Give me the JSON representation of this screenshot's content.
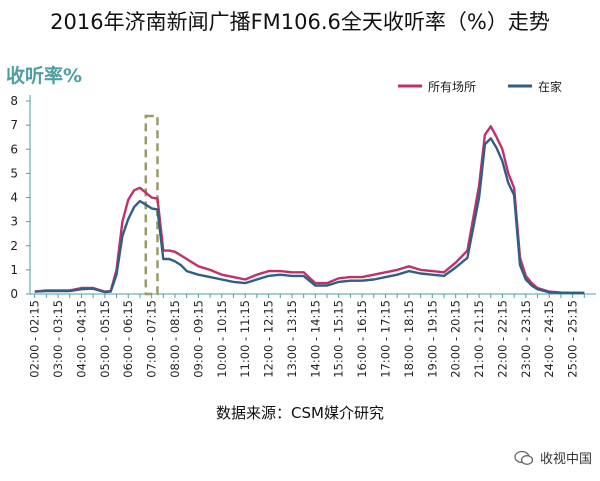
{
  "title": "2016年济南新闻广播FM106.6全天收听率（%）走势",
  "source": "数据来源：CSM媒介研究",
  "brand": "收视中国",
  "chart_data": {
    "type": "line",
    "ylabel": "收听率%",
    "ylim": [
      0,
      8
    ],
    "yticks": [
      0,
      1,
      2,
      3,
      4,
      5,
      6,
      7,
      8
    ],
    "xlabels": [
      "02:00 - 02:15",
      "03:00 - 03:15",
      "04:00 - 04:15",
      "05:00 - 05:15",
      "06:00 - 06:15",
      "07:00 - 07:15",
      "08:00 - 08:15",
      "09:00 - 09:15",
      "10:00 - 10:15",
      "11:00 - 11:15",
      "12:00 - 12:15",
      "13:00 - 13:15",
      "14:00 - 14:15",
      "15:00 - 15:15",
      "16:00 - 16:15",
      "17:00 - 17:15",
      "18:00 - 18:15",
      "19:00 - 19:15",
      "20:00 - 20:15",
      "21:00 - 21:15",
      "22:00 - 22:15",
      "23:00 - 23:15",
      "24:00 - 24:15",
      "25:00 - 25:15"
    ],
    "legend_position": "top-right",
    "highlight": {
      "x_start": 6.75,
      "x_end": 7.25,
      "style": "dashed-box"
    },
    "colors": {
      "all": "#c0306a",
      "home": "#2f5f86",
      "axis": "#4f9ea3",
      "highlight": "#9a9a6a"
    },
    "series": [
      {
        "name": "所有场所",
        "x": [
          2,
          2.5,
          3,
          3.5,
          4,
          4.5,
          5,
          5.25,
          5.5,
          5.75,
          6,
          6.25,
          6.5,
          6.75,
          7,
          7.25,
          7.5,
          7.75,
          8,
          8.25,
          8.5,
          9,
          9.5,
          10,
          10.5,
          11,
          11.5,
          12,
          12.5,
          13,
          13.5,
          14,
          14.5,
          15,
          15.5,
          16,
          16.5,
          17,
          17.5,
          18,
          18.5,
          19,
          19.5,
          20,
          20.5,
          21,
          21.25,
          21.5,
          21.75,
          22,
          22.25,
          22.5,
          22.75,
          23,
          23.25,
          23.5,
          24,
          24.5,
          25,
          25.5
        ],
        "values": [
          0.1,
          0.15,
          0.15,
          0.15,
          0.25,
          0.25,
          0.1,
          0.12,
          1.0,
          3.0,
          3.9,
          4.3,
          4.4,
          4.2,
          4.0,
          3.95,
          1.8,
          1.8,
          1.75,
          1.6,
          1.45,
          1.15,
          1.0,
          0.8,
          0.7,
          0.6,
          0.8,
          0.95,
          0.95,
          0.9,
          0.9,
          0.45,
          0.45,
          0.65,
          0.7,
          0.7,
          0.8,
          0.9,
          1.0,
          1.15,
          1.0,
          0.95,
          0.9,
          1.3,
          1.8,
          4.5,
          6.6,
          6.95,
          6.5,
          6.0,
          5.0,
          4.4,
          1.5,
          0.75,
          0.45,
          0.25,
          0.1,
          0.06,
          0.05,
          0.05
        ]
      },
      {
        "name": "在家",
        "x": [
          2,
          2.5,
          3,
          3.5,
          4,
          4.5,
          5,
          5.25,
          5.5,
          5.75,
          6,
          6.25,
          6.5,
          6.75,
          7,
          7.25,
          7.5,
          7.75,
          8,
          8.25,
          8.5,
          9,
          9.5,
          10,
          10.5,
          11,
          11.5,
          12,
          12.5,
          13,
          13.5,
          14,
          14.5,
          15,
          15.5,
          16,
          16.5,
          17,
          17.5,
          18,
          18.5,
          19,
          19.5,
          20,
          20.5,
          21,
          21.25,
          21.5,
          21.75,
          22,
          22.25,
          22.5,
          22.75,
          23,
          23.25,
          23.5,
          24,
          24.5,
          25,
          25.5
        ],
        "values": [
          0.1,
          0.12,
          0.12,
          0.12,
          0.2,
          0.22,
          0.08,
          0.1,
          0.8,
          2.4,
          3.1,
          3.6,
          3.85,
          3.7,
          3.55,
          3.5,
          1.45,
          1.45,
          1.35,
          1.2,
          0.95,
          0.8,
          0.7,
          0.6,
          0.5,
          0.45,
          0.6,
          0.75,
          0.8,
          0.75,
          0.75,
          0.35,
          0.35,
          0.5,
          0.55,
          0.55,
          0.6,
          0.7,
          0.8,
          0.95,
          0.85,
          0.8,
          0.75,
          1.1,
          1.5,
          4.0,
          6.2,
          6.45,
          6.05,
          5.5,
          4.6,
          4.1,
          1.2,
          0.6,
          0.35,
          0.2,
          0.07,
          0.05,
          0.04,
          0.04
        ]
      }
    ]
  }
}
